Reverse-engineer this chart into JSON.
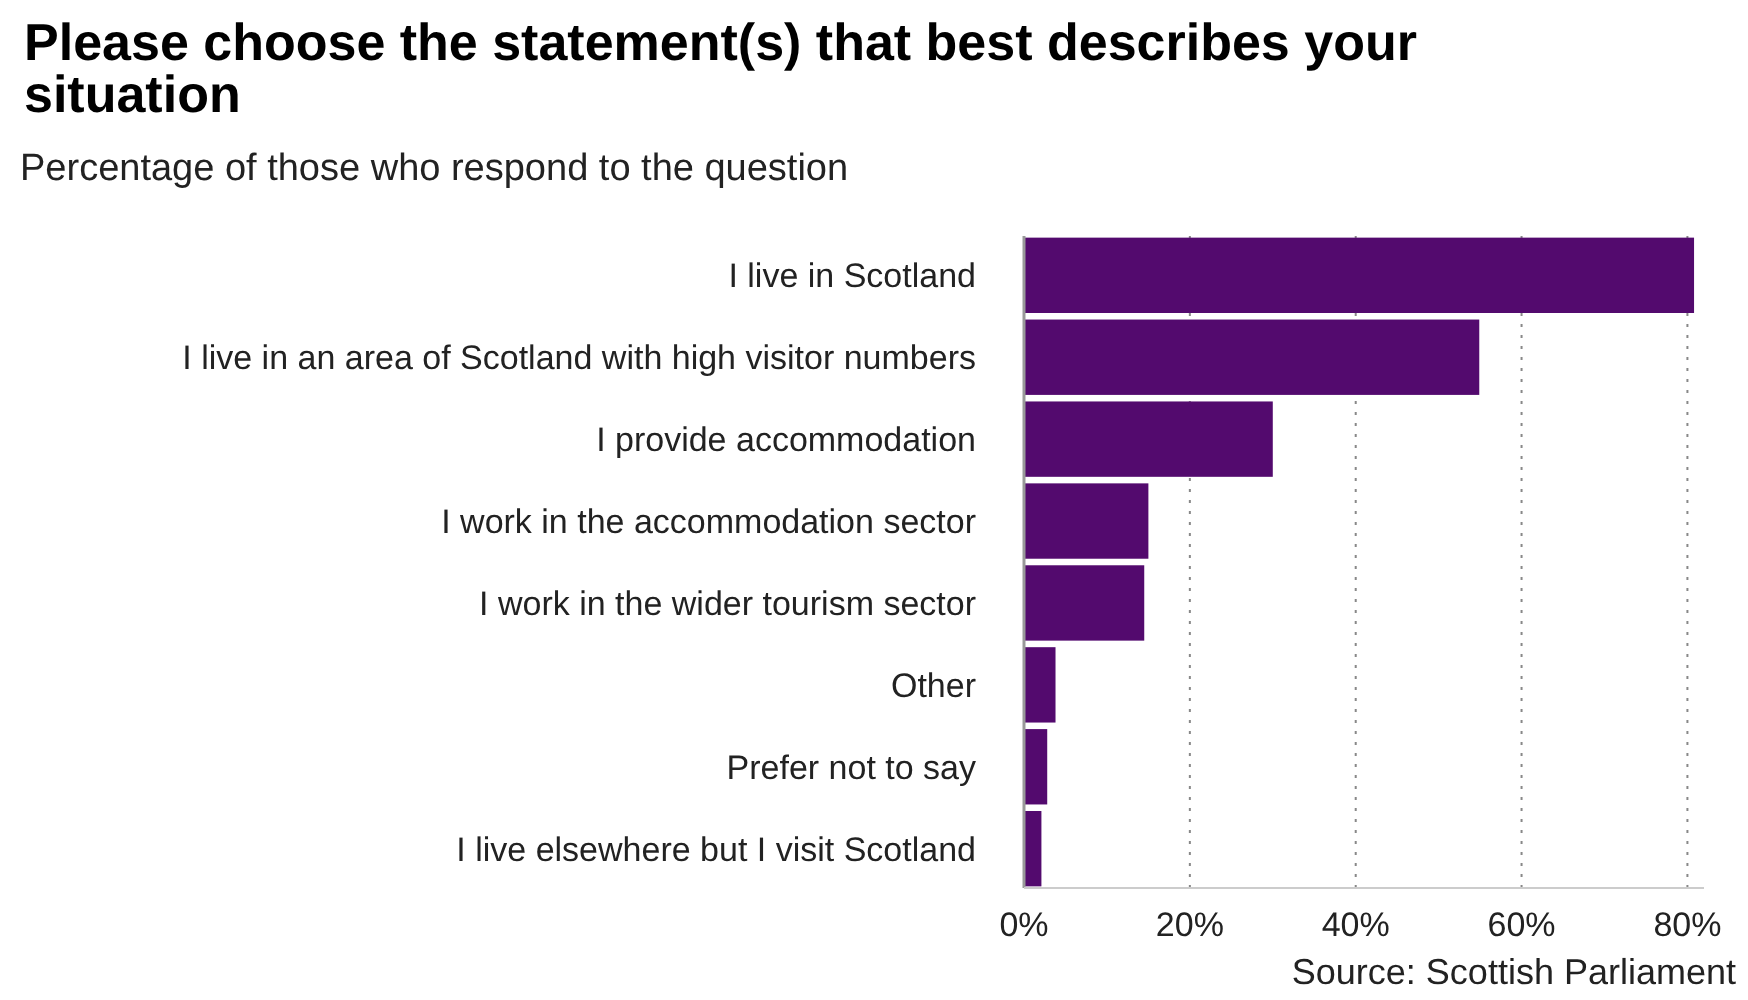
{
  "chart_data": {
    "type": "bar",
    "orientation": "horizontal",
    "title": "Please choose the statement(s) that best describes your situation",
    "subtitle": "Percentage of those who respond to the question",
    "categories": [
      "I live in Scotland",
      "I live in an area of Scotland with high visitor numbers",
      "I provide accommodation",
      "I work in the accommodation sector",
      "I work in the wider tourism sector",
      "Other",
      "Prefer not to say",
      "I live elsewhere but I visit Scotland"
    ],
    "values": [
      80.8,
      54.9,
      30.0,
      15.0,
      14.5,
      3.8,
      2.8,
      2.1
    ],
    "color": "#530a6e",
    "xlim": [
      0,
      82
    ],
    "xticks": [
      {
        "value": 0,
        "label": "0%"
      },
      {
        "value": 20,
        "label": "20%"
      },
      {
        "value": 40,
        "label": "40%"
      },
      {
        "value": 60,
        "label": "60%"
      },
      {
        "value": 80,
        "label": "80%"
      }
    ],
    "grid": "x",
    "annotations": [
      "Source: Scottish Parliament"
    ]
  }
}
